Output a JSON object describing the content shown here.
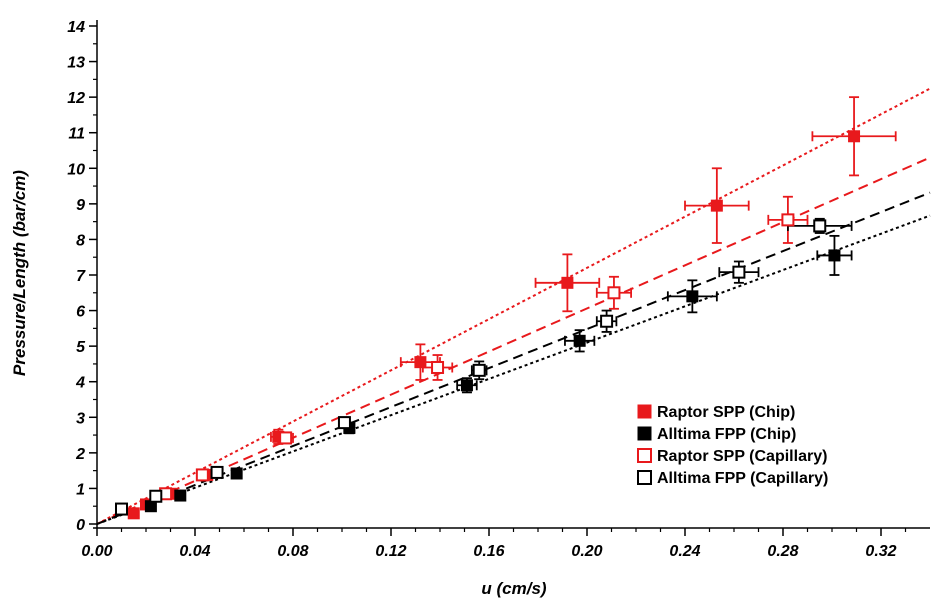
{
  "chart_data": {
    "type": "scatter",
    "xlabel": "u (cm/s)",
    "ylabel": "Pressure/Length (bar/cm)",
    "xlim": [
      0,
      0.34
    ],
    "ylim": [
      0,
      14
    ],
    "x_ticks": [
      0.0,
      0.04,
      0.08,
      0.12,
      0.16,
      0.2,
      0.24,
      0.28,
      0.32
    ],
    "x_tick_labels": [
      "0.00",
      "0.04",
      "0.08",
      "0.12",
      "0.16",
      "0.20",
      "0.24",
      "0.28",
      "0.32"
    ],
    "y_ticks": [
      0,
      1,
      2,
      3,
      4,
      5,
      6,
      7,
      8,
      9,
      10,
      11,
      12,
      13,
      14
    ],
    "y_tick_labels": [
      "0",
      "1",
      "2",
      "3",
      "4",
      "5",
      "6",
      "7",
      "8",
      "9",
      "10",
      "11",
      "12",
      "13",
      "14"
    ],
    "grid": false,
    "legend_position": "bottom-right",
    "series": [
      {
        "name": "Raptor SPP (Chip)",
        "color": "#e8191c",
        "marker": "filled-square",
        "fit": {
          "slope": 36.0,
          "intercept": 0.0,
          "style": "dotted"
        },
        "points": [
          {
            "x": 0.015,
            "y": 0.3
          },
          {
            "x": 0.02,
            "y": 0.55
          },
          {
            "x": 0.03,
            "y": 0.85
          },
          {
            "x": 0.045,
            "y": 1.38
          },
          {
            "x": 0.074,
            "y": 2.45,
            "xerr": 0.003,
            "yerr": 0.2
          },
          {
            "x": 0.132,
            "y": 4.55,
            "xerr": 0.008,
            "yerr": 0.5
          },
          {
            "x": 0.192,
            "y": 6.78,
            "xerr": 0.013,
            "yerr": 0.8
          },
          {
            "x": 0.253,
            "y": 8.95,
            "xerr": 0.013,
            "yerr": 1.05
          },
          {
            "x": 0.309,
            "y": 10.9,
            "xerr": 0.017,
            "yerr": 1.1
          }
        ]
      },
      {
        "name": "Alltima FPP (Chip)",
        "color": "#000000",
        "marker": "filled-square",
        "fit": {
          "slope": 25.5,
          "intercept": 0.0,
          "style": "dotted"
        },
        "points": [
          {
            "x": 0.022,
            "y": 0.5
          },
          {
            "x": 0.034,
            "y": 0.8
          },
          {
            "x": 0.057,
            "y": 1.42
          },
          {
            "x": 0.103,
            "y": 2.7,
            "xerr": 0.002,
            "yerr": 0.15
          },
          {
            "x": 0.151,
            "y": 3.9,
            "xerr": 0.004,
            "yerr": 0.2
          },
          {
            "x": 0.197,
            "y": 5.15,
            "xerr": 0.006,
            "yerr": 0.3
          },
          {
            "x": 0.243,
            "y": 6.4,
            "xerr": 0.01,
            "yerr": 0.45
          },
          {
            "x": 0.301,
            "y": 7.55,
            "xerr": 0.007,
            "yerr": 0.55
          }
        ]
      },
      {
        "name": "Raptor SPP (Capillary)",
        "color": "#e8191c",
        "marker": "open-square",
        "fit": {
          "slope": 30.3,
          "intercept": 0.0,
          "style": "dashed"
        },
        "points": [
          {
            "x": 0.028,
            "y": 0.85
          },
          {
            "x": 0.043,
            "y": 1.38
          },
          {
            "x": 0.077,
            "y": 2.42,
            "xerr": 0.003,
            "yerr": 0.15
          },
          {
            "x": 0.139,
            "y": 4.4,
            "xerr": 0.006,
            "yerr": 0.35
          },
          {
            "x": 0.211,
            "y": 6.5,
            "xerr": 0.007,
            "yerr": 0.45
          },
          {
            "x": 0.282,
            "y": 8.55,
            "xerr": 0.008,
            "yerr": 0.65
          }
        ]
      },
      {
        "name": "Alltima FPP (Capillary)",
        "color": "#000000",
        "marker": "open-square",
        "fit": {
          "slope": 27.4,
          "intercept": 0.0,
          "style": "dashed"
        },
        "points": [
          {
            "x": 0.01,
            "y": 0.42
          },
          {
            "x": 0.024,
            "y": 0.78
          },
          {
            "x": 0.049,
            "y": 1.45
          },
          {
            "x": 0.101,
            "y": 2.85,
            "xerr": 0.002,
            "yerr": 0.15
          },
          {
            "x": 0.156,
            "y": 4.32,
            "xerr": 0.003,
            "yerr": 0.25
          },
          {
            "x": 0.208,
            "y": 5.7,
            "xerr": 0.004,
            "yerr": 0.3
          },
          {
            "x": 0.262,
            "y": 7.08,
            "xerr": 0.008,
            "yerr": 0.3
          },
          {
            "x": 0.295,
            "y": 8.38,
            "xerr": 0.013,
            "yerr": 0.2
          }
        ]
      }
    ]
  }
}
